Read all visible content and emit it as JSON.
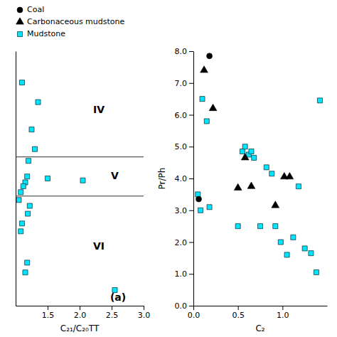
{
  "chart_data": [
    {
      "type": "scatter",
      "xlabel": "C₂₁/C₂₀TT",
      "legend": "upper left",
      "tick_labels": "x",
      "xlim": [
        1.0,
        3.0
      ],
      "ylim": [
        0.5,
        7.0
      ],
      "xticks": [
        1.5,
        {
          "value": 2.0,
          "label": "2.0"
        },
        2.5,
        {
          "value": 3.0,
          "label": "3.0"
        }
      ],
      "yticks": [],
      "hlines": [
        4.3,
        3.3
      ],
      "annotations": [
        {
          "text": "IV",
          "x": 2.3,
          "y": 5.5
        },
        {
          "text": "V",
          "x": 2.55,
          "y": 3.8
        },
        {
          "text": "VI",
          "x": 2.3,
          "y": 2.0
        },
        {
          "text": "(a)",
          "x": 2.6,
          "y": 0.7
        }
      ],
      "series": [
        {
          "name": "Coal",
          "color": "#000000",
          "marker": "circle",
          "x": [],
          "values": []
        },
        {
          "name": "Carbonaceous mudstone",
          "color": "#000000",
          "marker": "triangle",
          "x": [],
          "values": []
        },
        {
          "name": "Mudstone",
          "color": "#00E5FF",
          "marker": "square",
          "x": [
            1.1,
            1.35,
            1.25,
            1.3,
            1.2,
            1.18,
            1.15,
            1.12,
            1.08,
            1.05,
            1.22,
            1.19,
            1.5,
            2.05,
            2.55,
            1.18,
            1.15,
            1.1,
            1.08
          ],
          "values": [
            6.2,
            5.7,
            5.0,
            4.5,
            4.2,
            3.8,
            3.65,
            3.55,
            3.4,
            3.2,
            3.05,
            2.85,
            3.75,
            3.7,
            0.9,
            1.6,
            1.35,
            2.6,
            2.4
          ]
        }
      ]
    },
    {
      "type": "scatter",
      "xlabel": "C₂",
      "ylabel": "Pr/Ph",
      "xlim": [
        0.0,
        1.5
      ],
      "ylim": [
        0.0,
        8.0
      ],
      "xticks": [
        {
          "value": 0.0,
          "label": "0.0"
        },
        0.5,
        {
          "value": 1.0,
          "label": "1.0"
        }
      ],
      "yticks": [
        {
          "value": 0.0,
          "label": "0.0"
        },
        {
          "value": 1.0,
          "label": "1.0"
        },
        {
          "value": 2.0,
          "label": "2.0"
        },
        {
          "value": 3.0,
          "label": "3.0"
        },
        {
          "value": 4.0,
          "label": "4.0"
        },
        {
          "value": 5.0,
          "label": "5.0"
        },
        {
          "value": 6.0,
          "label": "6.0"
        },
        {
          "value": 7.0,
          "label": "7.0"
        },
        {
          "value": 8.0,
          "label": "8.0"
        }
      ],
      "series": [
        {
          "name": "Mudstone",
          "color": "#00E5FF",
          "marker": "square",
          "x": [
            0.05,
            0.1,
            0.15,
            0.18,
            0.08,
            0.5,
            0.55,
            0.58,
            0.62,
            0.65,
            0.68,
            0.75,
            0.82,
            0.88,
            0.92,
            0.98,
            1.05,
            1.12,
            1.18,
            1.25,
            1.32,
            1.38,
            1.42
          ],
          "values": [
            3.5,
            6.5,
            5.8,
            3.1,
            3.0,
            2.5,
            4.85,
            5.0,
            4.75,
            4.85,
            4.65,
            2.5,
            4.35,
            4.15,
            2.5,
            2.0,
            1.6,
            2.15,
            3.75,
            1.8,
            1.65,
            1.05,
            6.45
          ]
        },
        {
          "name": "Coal",
          "color": "#000000",
          "marker": "circle",
          "x": [
            0.06,
            0.18
          ],
          "values": [
            3.35,
            7.85
          ]
        },
        {
          "name": "Carbonaceous mudstone",
          "color": "#000000",
          "marker": "triangle",
          "x": [
            0.12,
            0.22,
            0.5,
            0.58,
            0.65,
            0.92,
            1.02,
            1.08
          ],
          "values": [
            7.4,
            6.2,
            3.7,
            4.65,
            3.75,
            3.15,
            4.05,
            4.05
          ]
        }
      ]
    }
  ]
}
